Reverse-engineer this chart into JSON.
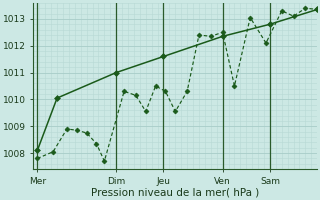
{
  "xlabel": "Pression niveau de la mer( hPa )",
  "bg_color": "#cce8e4",
  "grid_major_color": "#a8ccc8",
  "grid_minor_color": "#b8d8d4",
  "line_color": "#1a5a1a",
  "vline_color": "#2a5a2a",
  "xlim": [
    0,
    144
  ],
  "ylim": [
    1007.4,
    1013.6
  ],
  "yticks": [
    1008,
    1009,
    1010,
    1011,
    1012,
    1013
  ],
  "xtick_positions": [
    2,
    42,
    66,
    96,
    120
  ],
  "xtick_labels": [
    "Mer",
    "Dim",
    "Jeu",
    "Ven",
    "Sam"
  ],
  "vline_positions": [
    2,
    42,
    66,
    96,
    120
  ],
  "series_detail_x": [
    2,
    10,
    17,
    22,
    27,
    32,
    36,
    46,
    52,
    57,
    62,
    67,
    72,
    78,
    84,
    90,
    96,
    102,
    110,
    118,
    126,
    132,
    138,
    144
  ],
  "series_detail_y": [
    1007.8,
    1008.05,
    1008.9,
    1008.85,
    1008.75,
    1008.35,
    1007.7,
    1010.3,
    1010.15,
    1009.55,
    1010.5,
    1010.3,
    1009.55,
    1010.3,
    1012.4,
    1012.35,
    1012.5,
    1010.5,
    1013.05,
    1012.1,
    1013.3,
    1013.1,
    1013.4,
    1013.35
  ],
  "series_smooth_x": [
    2,
    12,
    42,
    66,
    96,
    120,
    144
  ],
  "series_smooth_y": [
    1008.1,
    1010.05,
    1011.0,
    1011.6,
    1012.35,
    1012.8,
    1013.35
  ]
}
